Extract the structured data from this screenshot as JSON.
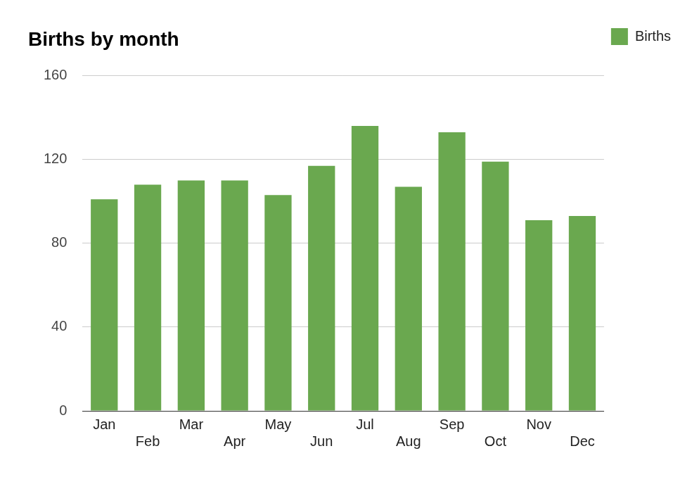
{
  "chart_data": {
    "type": "bar",
    "title": "Births by month",
    "categories": [
      "Jan",
      "Feb",
      "Mar",
      "Apr",
      "May",
      "Jun",
      "Jul",
      "Aug",
      "Sep",
      "Oct",
      "Nov",
      "Dec"
    ],
    "series": [
      {
        "name": "Births",
        "color": "#6aa84f",
        "values": [
          101,
          108,
          110,
          110,
          103,
          117,
          136,
          107,
          133,
          119,
          91,
          93
        ]
      }
    ],
    "ylim": [
      0,
      160
    ],
    "yticks": [
      0,
      40,
      80,
      120,
      160
    ],
    "grid": true,
    "legend": "top right"
  }
}
